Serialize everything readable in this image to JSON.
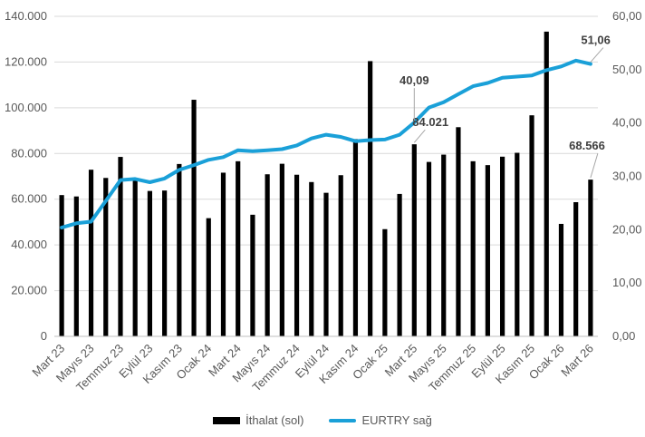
{
  "chart_data": {
    "type": "bar+line",
    "categories": [
      "Mart 23",
      "Nisan 23",
      "Mayıs 23",
      "Haziran 23",
      "Temmuz 23",
      "Ağustos 23",
      "Eylül 23",
      "Ekim 23",
      "Kasım 23",
      "Aralık 23",
      "Ocak 24",
      "Şubat 24",
      "Mart 24",
      "Nisan 24",
      "Mayıs 24",
      "Haziran 24",
      "Temmuz 24",
      "Ağustos 24",
      "Eylül 24",
      "Ekim 24",
      "Kasım 24",
      "Aralık 24",
      "Ocak 25",
      "Şubat 25",
      "Mart 25",
      "Nisan 25",
      "Mayıs 25",
      "Haziran 25",
      "Temmuz 25",
      "Ağustos 25",
      "Eylül 25",
      "Ekim 25",
      "Kasım 25",
      "Aralık 25",
      "Ocak 26",
      "Şubat 26",
      "Mart 26"
    ],
    "tick_labels": [
      "Mart 23",
      "",
      "Mayıs 23",
      "",
      "Temmuz 23",
      "",
      "Eylül 23",
      "",
      "Kasım 23",
      "",
      "Ocak 24",
      "",
      "Mart 24",
      "",
      "Mayıs 24",
      "",
      "Temmuz 24",
      "",
      "Eylül 24",
      "",
      "Kasım 24",
      "",
      "Ocak 25",
      "",
      "Mart 25",
      "",
      "Mayıs 25",
      "",
      "Temmuz 25",
      "",
      "Eylül 25",
      "",
      "Kasım 25",
      "",
      "Ocak 26",
      "",
      "Mart 26"
    ],
    "series": [
      {
        "name": "İthalat (sol)",
        "kind": "bar",
        "axis": "left",
        "color": "#000000",
        "values": [
          61800,
          61200,
          72900,
          69300,
          78500,
          68200,
          63600,
          63800,
          75400,
          103500,
          51700,
          71600,
          76600,
          53200,
          70900,
          75500,
          70700,
          67500,
          62800,
          70500,
          86300,
          120400,
          46900,
          62300,
          84021,
          76300,
          79500,
          91500,
          76600,
          74900,
          78600,
          80300,
          96700,
          133300,
          49200,
          58700,
          68566
        ]
      },
      {
        "name": "EURTRY sağ",
        "kind": "line",
        "axis": "right",
        "color": "#1aa0d8",
        "values": [
          20.4,
          21.2,
          21.5,
          25.4,
          29.3,
          29.5,
          28.9,
          29.6,
          31.2,
          32.1,
          33.1,
          33.6,
          34.9,
          34.7,
          34.9,
          35.1,
          35.8,
          37.1,
          37.8,
          37.4,
          36.6,
          36.8,
          36.9,
          37.8,
          40.09,
          42.9,
          43.9,
          45.4,
          46.9,
          47.5,
          48.5,
          48.7,
          48.9,
          49.9,
          50.6,
          51.7,
          51.06
        ]
      }
    ],
    "annotations": [
      {
        "series": 0,
        "index": 24,
        "text": "84.021"
      },
      {
        "series": 0,
        "index": 36,
        "text": "68.566"
      },
      {
        "series": 1,
        "index": 24,
        "text": "40,09"
      },
      {
        "series": 1,
        "index": 36,
        "text": "51,06"
      }
    ],
    "y_left": {
      "min": 0,
      "max": 140000,
      "step": 20000,
      "ticks": [
        "0",
        "20.000",
        "40.000",
        "60.000",
        "80.000",
        "100.000",
        "120.000",
        "140.000"
      ]
    },
    "y_right": {
      "min": 0,
      "max": 60,
      "step": 10,
      "ticks": [
        "0,00",
        "10,00",
        "20,00",
        "30,00",
        "40,00",
        "50,00",
        "60,00"
      ]
    },
    "grid": true,
    "legend": {
      "position": "bottom",
      "items": [
        {
          "label": "İthalat (sol)",
          "color": "#000000",
          "kind": "bar"
        },
        {
          "label": "EURTRY sağ",
          "color": "#1aa0d8",
          "kind": "line"
        }
      ]
    }
  }
}
